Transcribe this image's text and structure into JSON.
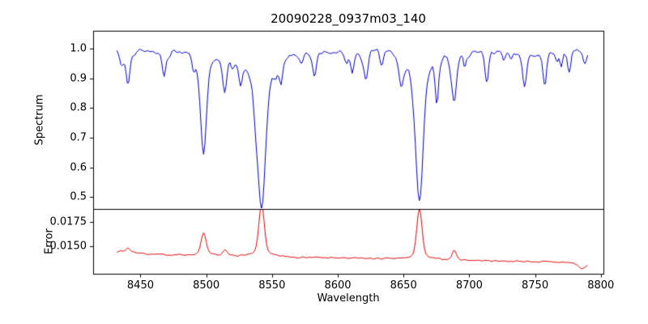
{
  "chart_data": {
    "type": "line",
    "title": "20090228_0937m03_140",
    "xlabel": "Wavelength",
    "background": "#ffffff",
    "axis_color": "#000000",
    "grid": false,
    "legend": null,
    "xlim": [
      8414,
      8802
    ],
    "x_start": 8432,
    "x_end": 8790,
    "x_step": 1,
    "x_ticks": {
      "values": [
        8450,
        8500,
        8550,
        8600,
        8650,
        8700,
        8750,
        8800
      ],
      "labels": [
        "8450",
        "8500",
        "8550",
        "8600",
        "8650",
        "8700",
        "8750",
        "8800"
      ]
    },
    "panels": [
      {
        "name": "spectrum",
        "ylabel": "Spectrum",
        "color": "#0000cd",
        "ylim": [
          0.46,
          1.06
        ],
        "y_ticks": {
          "values": [
            0.5,
            0.6,
            0.7,
            0.8,
            0.9,
            1.0
          ],
          "labels": [
            "0.5",
            "0.6",
            "0.7",
            "0.8",
            "0.9",
            "1.0"
          ]
        },
        "continuum": 0.995,
        "noise_amplitude": 0.012,
        "seed": 42,
        "minor_line_count": 34,
        "absorption_lines": [
          {
            "center": 8498.0,
            "depth": 0.34,
            "sigma": 2.0,
            "wing": 6.0
          },
          {
            "center": 8542.1,
            "depth": 0.52,
            "sigma": 2.7,
            "wing": 8.0
          },
          {
            "center": 8662.1,
            "depth": 0.51,
            "sigma": 2.6,
            "wing": 7.5
          },
          {
            "center": 8440.5,
            "depth": 0.12,
            "sigma": 1.5,
            "wing": 2.2
          },
          {
            "center": 8468.0,
            "depth": 0.09,
            "sigma": 1.3,
            "wing": 2.0
          },
          {
            "center": 8514.2,
            "depth": 0.12,
            "sigma": 1.5,
            "wing": 2.2
          },
          {
            "center": 8526.0,
            "depth": 0.07,
            "sigma": 1.2,
            "wing": 1.8
          },
          {
            "center": 8556.8,
            "depth": 0.07,
            "sigma": 1.2,
            "wing": 1.8
          },
          {
            "center": 8582.3,
            "depth": 0.08,
            "sigma": 1.3,
            "wing": 1.9
          },
          {
            "center": 8611.0,
            "depth": 0.07,
            "sigma": 1.2,
            "wing": 1.8
          },
          {
            "center": 8621.5,
            "depth": 0.08,
            "sigma": 1.3,
            "wing": 1.9
          },
          {
            "center": 8648.5,
            "depth": 0.07,
            "sigma": 1.2,
            "wing": 1.8
          },
          {
            "center": 8674.8,
            "depth": 0.08,
            "sigma": 1.2,
            "wing": 1.8
          },
          {
            "center": 8688.6,
            "depth": 0.16,
            "sigma": 1.7,
            "wing": 2.4
          },
          {
            "center": 8713.2,
            "depth": 0.09,
            "sigma": 1.3,
            "wing": 1.9
          },
          {
            "center": 8742.0,
            "depth": 0.09,
            "sigma": 1.3,
            "wing": 1.9
          },
          {
            "center": 8757.5,
            "depth": 0.08,
            "sigma": 1.2,
            "wing": 1.8
          },
          {
            "center": 8776.0,
            "depth": 0.07,
            "sigma": 1.2,
            "wing": 1.8
          }
        ],
        "strong_line_minima": [
          {
            "wavelength": 8498,
            "flux": 0.66
          },
          {
            "wavelength": 8542,
            "flux": 0.48
          },
          {
            "wavelength": 8662,
            "flux": 0.49
          }
        ]
      },
      {
        "name": "error",
        "ylabel": "Error",
        "color": "#e60000",
        "ylim": [
          0.0122,
          0.0188
        ],
        "y_ticks": {
          "values": [
            0.015,
            0.0175
          ],
          "labels": [
            "0.0150",
            "0.0175"
          ]
        },
        "baseline_left": 0.0142,
        "baseline_right": 0.01334,
        "noise_amplitude": 0.00011,
        "seed": 7,
        "peaks": [
          {
            "center": 8498.0,
            "height": 0.002,
            "sigma": 1.8
          },
          {
            "center": 8542.1,
            "height": 0.00465,
            "sigma": 2.0
          },
          {
            "center": 8662.1,
            "height": 0.00455,
            "sigma": 1.9
          },
          {
            "center": 8514.2,
            "height": 0.00045,
            "sigma": 1.5
          },
          {
            "center": 8688.6,
            "height": 0.00085,
            "sigma": 1.5
          },
          {
            "center": 8440.5,
            "height": 0.0003,
            "sigma": 1.5
          },
          {
            "center": 8437.0,
            "height": 0.00025,
            "sigma": 10.0
          },
          {
            "center": 8786.0,
            "height": -0.00055,
            "sigma": 3.0
          }
        ],
        "peak_maxima": [
          {
            "wavelength": 8498,
            "error": 0.0161
          },
          {
            "wavelength": 8542,
            "error": 0.0184
          },
          {
            "wavelength": 8662,
            "error": 0.0181
          }
        ]
      }
    ]
  }
}
